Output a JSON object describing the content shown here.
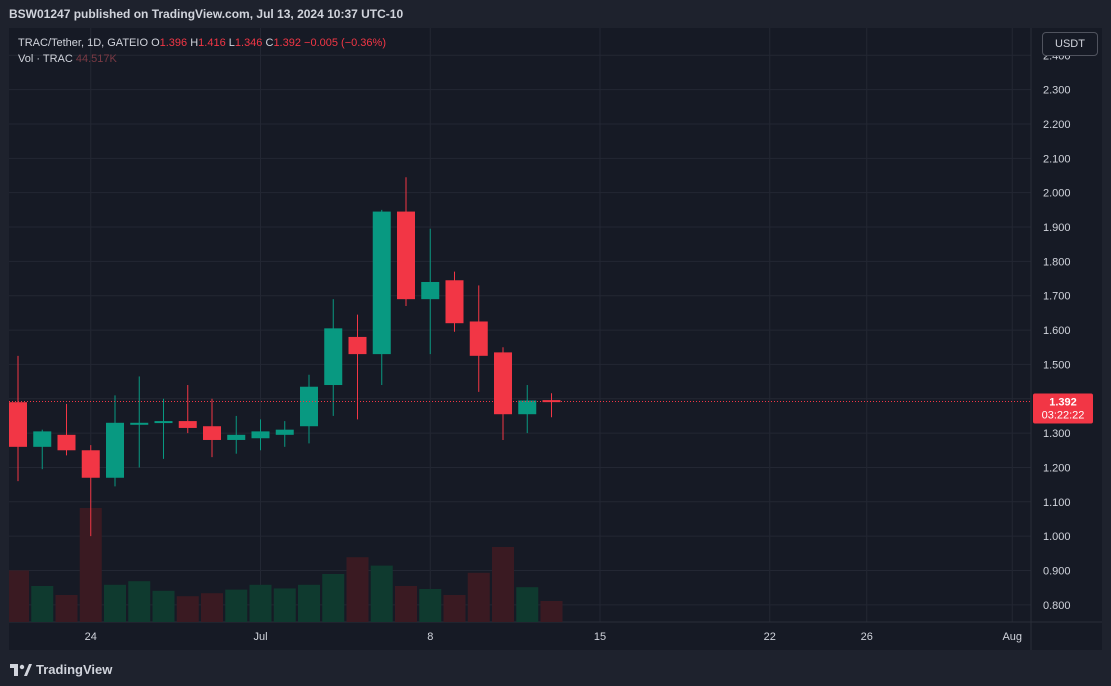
{
  "header": {
    "publish_line": "BSW01247 published on TradingView.com, Jul 13, 2024 10:37 UTC-10"
  },
  "legend": {
    "symbol": "TRAC/Tether, 1D, GATEIO",
    "o_label": "O",
    "o_value": "1.396",
    "h_label": "H",
    "h_value": "1.416",
    "l_label": "L",
    "l_value": "1.346",
    "c_label": "C",
    "c_value": "1.392",
    "change": "−0.005 (−0.36%)",
    "vol_label": "Vol · TRAC",
    "vol_value": "44.517K"
  },
  "currency_button": "USDT",
  "last_price": {
    "value": "1.392",
    "countdown": "03:22:22",
    "color": "#f23645"
  },
  "footer": {
    "brand": "TradingView"
  },
  "colors": {
    "up": "#089981",
    "down": "#f23645",
    "vol_up": "#0f3a2f",
    "vol_down": "#3a1a22",
    "grid": "#232733"
  },
  "chart_data": {
    "type": "candlestick",
    "y_ticks": [
      "0.800",
      "0.900",
      "1.000",
      "1.100",
      "1.200",
      "1.300",
      "1.400",
      "1.500",
      "1.600",
      "1.700",
      "1.800",
      "1.900",
      "2.000",
      "2.100",
      "2.200",
      "2.300",
      "2.400"
    ],
    "ylim": [
      0.75,
      2.43
    ],
    "x_labels": [
      {
        "label": "24",
        "idx": 3
      },
      {
        "label": "Jul",
        "idx": 10
      },
      {
        "label": "8",
        "idx": 17
      },
      {
        "label": "15",
        "idx": 24
      },
      {
        "label": "22",
        "idx": 31
      },
      {
        "label": "26",
        "idx": 35
      },
      {
        "label": "Aug",
        "idx": 41
      }
    ],
    "candles": [
      {
        "o": 1.39,
        "h": 1.525,
        "l": 1.16,
        "c": 1.26,
        "v": 0.86
      },
      {
        "o": 1.26,
        "h": 1.31,
        "l": 1.195,
        "c": 1.305,
        "v": 0.6
      },
      {
        "o": 1.295,
        "h": 1.385,
        "l": 1.235,
        "c": 1.25,
        "v": 0.45
      },
      {
        "o": 1.25,
        "h": 1.265,
        "l": 1.0,
        "c": 1.17,
        "v": 1.9
      },
      {
        "o": 1.17,
        "h": 1.41,
        "l": 1.145,
        "c": 1.33,
        "v": 0.62
      },
      {
        "o": 1.33,
        "h": 1.465,
        "l": 1.2,
        "c": 1.33,
        "v": 0.68
      },
      {
        "o": 1.33,
        "h": 1.4,
        "l": 1.225,
        "c": 1.335,
        "v": 0.52
      },
      {
        "o": 1.335,
        "h": 1.44,
        "l": 1.3,
        "c": 1.315,
        "v": 0.43
      },
      {
        "o": 1.32,
        "h": 1.4,
        "l": 1.23,
        "c": 1.28,
        "v": 0.48
      },
      {
        "o": 1.28,
        "h": 1.35,
        "l": 1.24,
        "c": 1.295,
        "v": 0.54
      },
      {
        "o": 1.285,
        "h": 1.34,
        "l": 1.25,
        "c": 1.305,
        "v": 0.62
      },
      {
        "o": 1.295,
        "h": 1.335,
        "l": 1.26,
        "c": 1.31,
        "v": 0.56
      },
      {
        "o": 1.32,
        "h": 1.47,
        "l": 1.27,
        "c": 1.435,
        "v": 0.62
      },
      {
        "o": 1.44,
        "h": 1.69,
        "l": 1.35,
        "c": 1.605,
        "v": 0.8
      },
      {
        "o": 1.58,
        "h": 1.645,
        "l": 1.34,
        "c": 1.53,
        "v": 1.08
      },
      {
        "o": 1.53,
        "h": 1.95,
        "l": 1.44,
        "c": 1.945,
        "v": 0.94
      },
      {
        "o": 1.945,
        "h": 2.045,
        "l": 1.67,
        "c": 1.69,
        "v": 0.6
      },
      {
        "o": 1.69,
        "h": 1.895,
        "l": 1.53,
        "c": 1.74,
        "v": 0.55
      },
      {
        "o": 1.745,
        "h": 1.77,
        "l": 1.595,
        "c": 1.62,
        "v": 0.45
      },
      {
        "o": 1.625,
        "h": 1.73,
        "l": 1.42,
        "c": 1.525,
        "v": 0.82
      },
      {
        "o": 1.535,
        "h": 1.55,
        "l": 1.28,
        "c": 1.355,
        "v": 1.25
      },
      {
        "o": 1.355,
        "h": 1.44,
        "l": 1.3,
        "c": 1.395,
        "v": 0.58
      },
      {
        "o": 1.396,
        "h": 1.416,
        "l": 1.346,
        "c": 1.392,
        "v": 0.35
      }
    ]
  }
}
